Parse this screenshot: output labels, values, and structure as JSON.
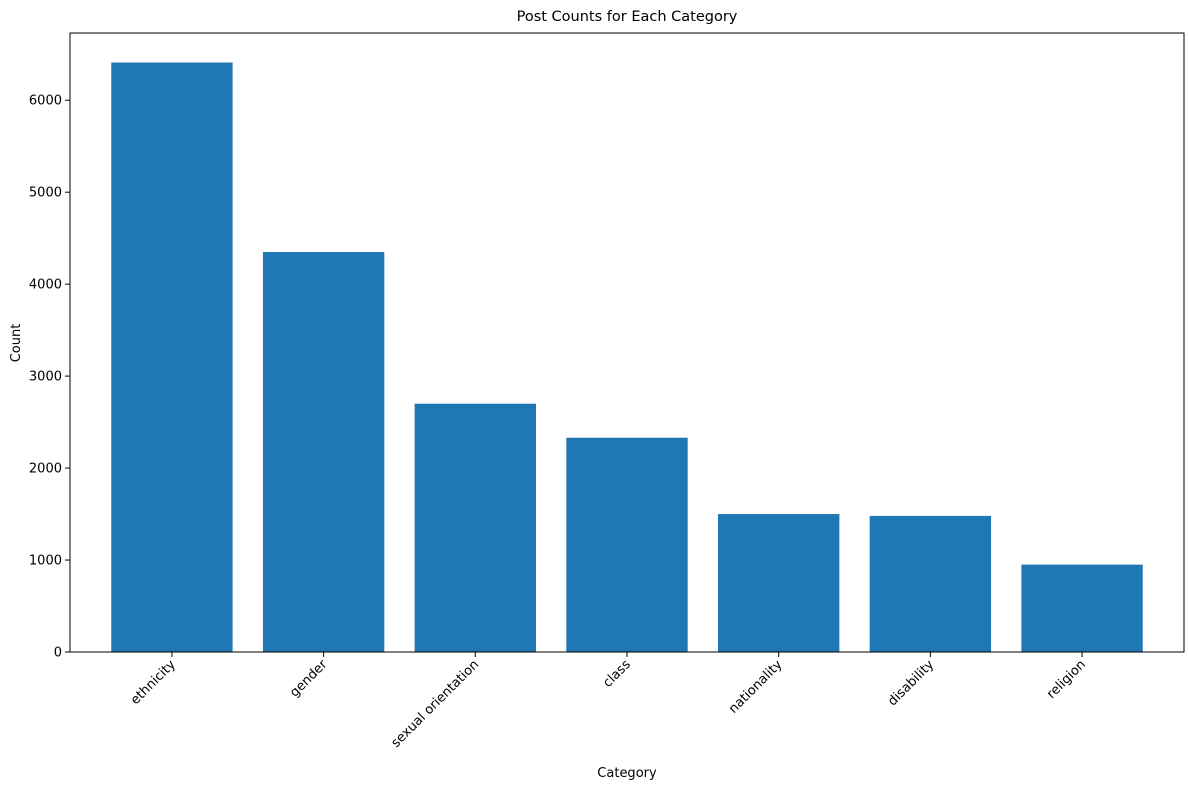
{
  "chart_data": {
    "type": "bar",
    "title": "Post Counts for Each Category",
    "xlabel": "Category",
    "ylabel": "Count",
    "categories": [
      "ethnicity",
      "gender",
      "sexual orientation",
      "class",
      "nationality",
      "disability",
      "religion"
    ],
    "values": [
      6410,
      4350,
      2700,
      2330,
      1500,
      1480,
      950
    ],
    "yticks": [
      0,
      1000,
      2000,
      3000,
      4000,
      5000,
      6000
    ],
    "ylim": [
      0,
      6731
    ],
    "grid": false,
    "legend": "none",
    "bar_color": "#1f77b4",
    "x_tick_rotation": 45
  }
}
